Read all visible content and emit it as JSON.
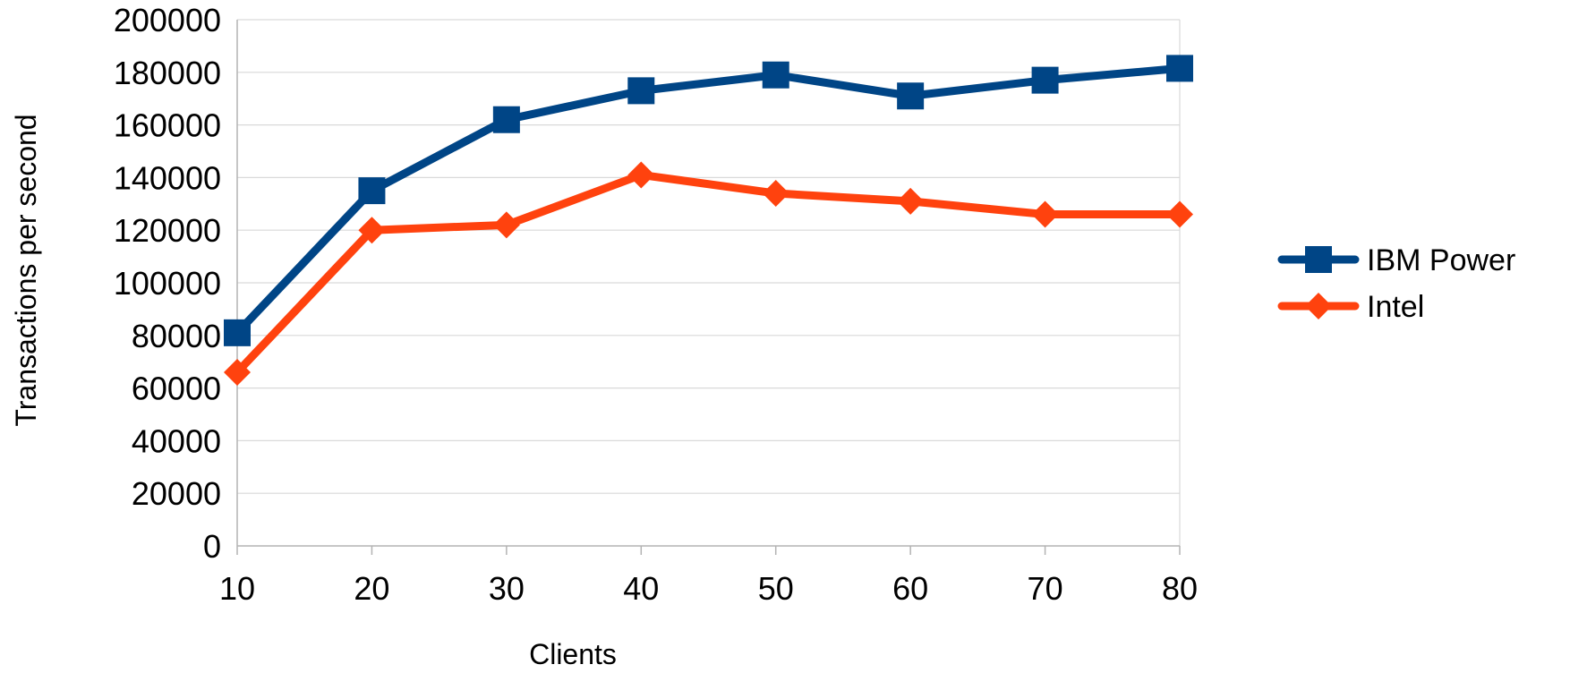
{
  "chart_data": {
    "type": "line",
    "title": "",
    "xlabel": "Clients",
    "ylabel": "Transactions per second",
    "x": [
      10,
      20,
      30,
      40,
      50,
      60,
      70,
      80
    ],
    "xlim": [
      10,
      80
    ],
    "ylim": [
      0,
      200000
    ],
    "y_ticks": [
      0,
      20000,
      40000,
      60000,
      80000,
      100000,
      120000,
      140000,
      160000,
      180000,
      200000
    ],
    "x_ticks": [
      10,
      20,
      30,
      40,
      50,
      60,
      70,
      80
    ],
    "grid": true,
    "legend_position": "right",
    "series": [
      {
        "name": "IBM Power",
        "color": "#004586",
        "marker": "square",
        "values": [
          81000,
          135000,
          162000,
          173000,
          179000,
          171000,
          177000,
          181500
        ]
      },
      {
        "name": "Intel",
        "color": "#ff420e",
        "marker": "diamond",
        "values": [
          66000,
          120000,
          122000,
          141000,
          134000,
          131000,
          126000,
          126000
        ]
      }
    ]
  }
}
